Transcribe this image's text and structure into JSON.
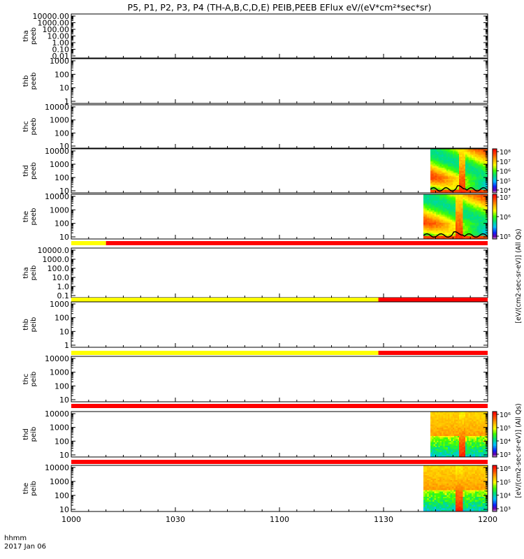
{
  "title": "P5, P1, P2, P3, P4 (TH-A,B,C,D,E) PEIB,PEEB EFlux eV/(eV*cm²*sec*sr)",
  "footer": {
    "time_label": "hhmm",
    "date_label": "2017 Jan 06"
  },
  "x_axis": {
    "ticks": [
      "1000",
      "1030",
      "1100",
      "1130",
      "1200"
    ],
    "range_minutes": [
      0,
      120
    ]
  },
  "colorbar_labels": {
    "eeb": "[eV/(cm2-sec-sr-eV)] (All Qs)",
    "eib": "[eV/(cm2-sec-sr-eV)] (All Qs)"
  },
  "colors": {
    "red_bar": "#ff0000",
    "yellow_bar": "#ffff00",
    "axis": "#000000"
  },
  "chart_data": [
    {
      "type": "heatmap",
      "name": "tha-peeb",
      "label": [
        "tha",
        "peeb"
      ],
      "ylog": true,
      "yticks": [
        "10000.00",
        "1000.00",
        "100.00",
        "10.00",
        "1.00",
        "0.10",
        "0.01"
      ],
      "has_data": false
    },
    {
      "type": "heatmap",
      "name": "thb-peeb",
      "label": [
        "thb",
        "peeb"
      ],
      "ylog": true,
      "yticks": [
        "1000",
        "100",
        "10",
        "1"
      ],
      "has_data": false
    },
    {
      "type": "heatmap",
      "name": "thc-peeb",
      "label": [
        "thc",
        "peeb"
      ],
      "ylog": true,
      "yticks": [
        "10000",
        "1000",
        "100",
        "10"
      ],
      "has_data": false
    },
    {
      "type": "heatmap",
      "name": "thd-peeb",
      "label": [
        "thd",
        "peeb"
      ],
      "ylog": true,
      "yticks": [
        "10000",
        "1000",
        "100",
        "10"
      ],
      "has_data": true,
      "data_start_min": 103.5,
      "colorbar": {
        "ticks": [
          "10⁸",
          "10⁷",
          "10⁶",
          "10⁵",
          "10⁴"
        ]
      }
    },
    {
      "type": "heatmap",
      "name": "the-peeb",
      "label": [
        "the",
        "peeb"
      ],
      "ylog": true,
      "yticks": [
        "10000",
        "1000",
        "100",
        "10"
      ],
      "has_data": true,
      "data_start_min": 101.5,
      "colorbar": {
        "ticks": [
          "10⁷",
          "10⁶",
          "10⁵"
        ]
      }
    },
    {
      "type": "bar",
      "name": "flag-bar-1",
      "segments": [
        {
          "from_min": 0,
          "to_min": 10,
          "color": "yellow"
        },
        {
          "from_min": 10,
          "to_min": 120,
          "color": "red"
        }
      ]
    },
    {
      "type": "heatmap",
      "name": "tha-peib",
      "label": [
        "tha",
        "peib"
      ],
      "ylog": true,
      "yticks": [
        "10000.0",
        "1000.0",
        "100.0",
        "10.0",
        "1.0",
        "0.1"
      ],
      "has_data": false
    },
    {
      "type": "bar",
      "name": "flag-bar-2",
      "segments": [
        {
          "from_min": 0,
          "to_min": 88.5,
          "color": "yellow"
        },
        {
          "from_min": 88.5,
          "to_min": 120,
          "color": "red"
        }
      ]
    },
    {
      "type": "heatmap",
      "name": "thb-peib",
      "label": [
        "thb",
        "peib"
      ],
      "ylog": true,
      "yticks": [
        "1000",
        "100",
        "10",
        "1"
      ],
      "has_data": false
    },
    {
      "type": "bar",
      "name": "flag-bar-3",
      "segments": [
        {
          "from_min": 0,
          "to_min": 88.5,
          "color": "yellow"
        },
        {
          "from_min": 88.5,
          "to_min": 120,
          "color": "red"
        }
      ]
    },
    {
      "type": "heatmap",
      "name": "thc-peib",
      "label": [
        "thc",
        "peib"
      ],
      "ylog": true,
      "yticks": [
        "10000",
        "1000",
        "100",
        "10"
      ],
      "has_data": false
    },
    {
      "type": "bar",
      "name": "flag-bar-4",
      "segments": [
        {
          "from_min": 0,
          "to_min": 120,
          "color": "red"
        }
      ]
    },
    {
      "type": "heatmap",
      "name": "thd-peib",
      "label": [
        "thd",
        "peib"
      ],
      "ylog": true,
      "yticks": [
        "10000",
        "1000",
        "100",
        "10"
      ],
      "has_data": true,
      "data_start_min": 103.5,
      "colorbar": {
        "ticks": [
          "10⁶",
          "10⁵",
          "10⁴",
          "10³"
        ]
      }
    },
    {
      "type": "bar",
      "name": "flag-bar-5",
      "segments": [
        {
          "from_min": 0,
          "to_min": 120,
          "color": "red"
        }
      ]
    },
    {
      "type": "heatmap",
      "name": "the-peib",
      "label": [
        "the",
        "peib"
      ],
      "ylog": true,
      "yticks": [
        "10000",
        "1000",
        "100",
        "10"
      ],
      "has_data": true,
      "data_start_min": 101.5,
      "colorbar": {
        "ticks": [
          "10⁶",
          "10⁵",
          "10⁴",
          "10³"
        ]
      }
    }
  ]
}
